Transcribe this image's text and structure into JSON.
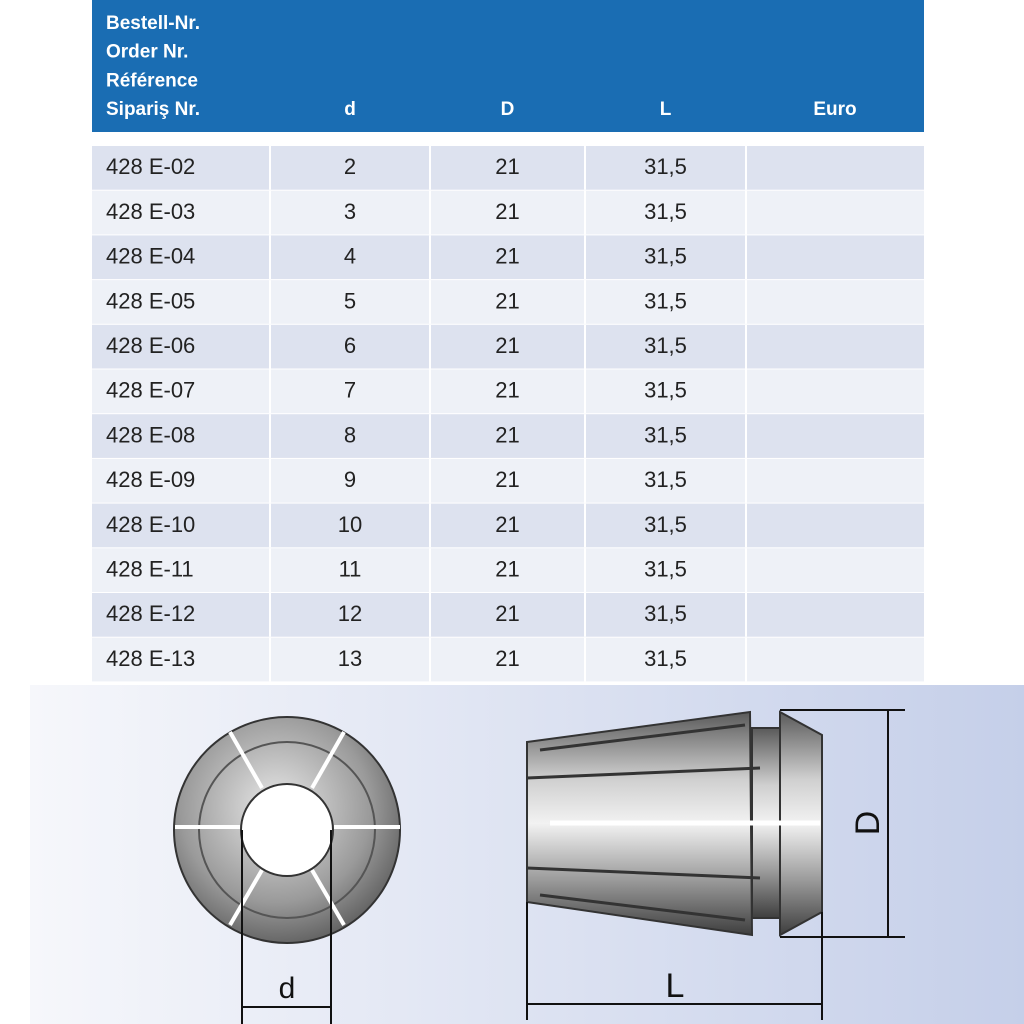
{
  "table": {
    "header": {
      "order": [
        "Bestell-Nr.",
        "Order Nr.",
        "Référence",
        "Sipariş Nr."
      ],
      "d": "d",
      "D": "D",
      "L": "L",
      "price": "Euro"
    },
    "rows": [
      [
        "428 E-02",
        2,
        21,
        "31,5"
      ],
      [
        "428 E-03",
        3,
        21,
        "31,5"
      ],
      [
        "428 E-04",
        4,
        21,
        "31,5"
      ],
      [
        "428 E-05",
        5,
        21,
        "31,5"
      ],
      [
        "428 E-06",
        6,
        21,
        "31,5"
      ],
      [
        "428 E-07",
        7,
        21,
        "31,5"
      ],
      [
        "428 E-08",
        8,
        21,
        "31,5"
      ],
      [
        "428 E-09",
        9,
        21,
        "31,5"
      ],
      [
        "428 E-10",
        10,
        21,
        "31,5"
      ],
      [
        "428 E-11",
        11,
        21,
        "31,5"
      ],
      [
        "428 E-12",
        12,
        21,
        "31,5"
      ],
      [
        "428 E-13",
        13,
        21,
        "31,5"
      ]
    ]
  },
  "diagram": {
    "labels": {
      "d": "d",
      "D": "D",
      "L": "L"
    }
  }
}
